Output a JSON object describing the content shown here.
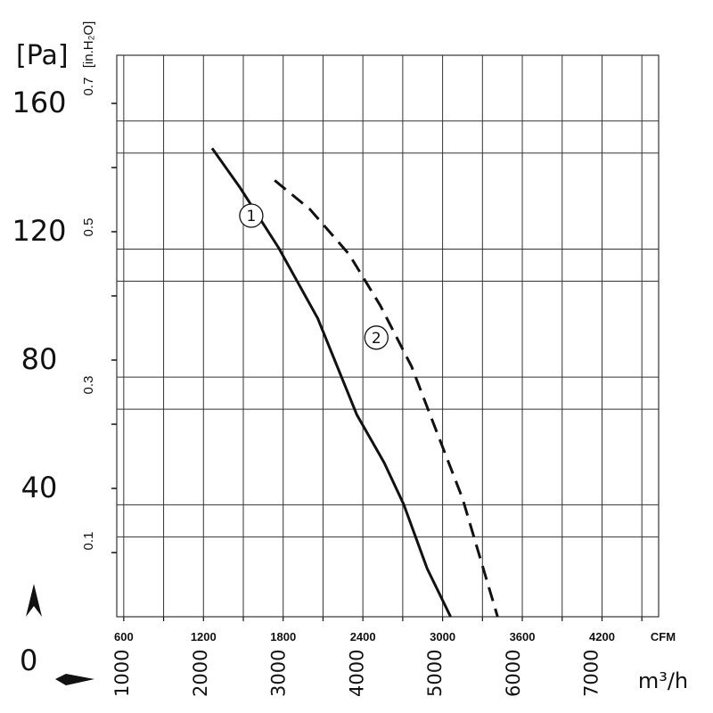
{
  "chart_data": {
    "type": "line",
    "title": "",
    "x_axis_primary": {
      "unit": "CFM",
      "ticks": [
        600,
        1200,
        1800,
        2400,
        3000,
        3600,
        4200
      ]
    },
    "x_axis_secondary": {
      "unit": "m³/h",
      "ticks": [
        1000,
        2000,
        3000,
        4000,
        5000,
        6000,
        7000
      ]
    },
    "y_axis_primary": {
      "unit": "[Pa]",
      "ticks": [
        0,
        40,
        80,
        120,
        160
      ],
      "ylim": [
        0,
        175
      ]
    },
    "y_axis_secondary": {
      "unit": "[in.H₂O]",
      "ticks": [
        "0.1",
        "0.3",
        "0.5",
        "0.7"
      ]
    },
    "xlim_m3h": [
      930,
      7860
    ],
    "grid": true,
    "series": [
      {
        "name": "①",
        "style": "solid",
        "x_m3h": [
          2150,
          2500,
          3000,
          3500,
          4000,
          4350,
          4600,
          4900,
          5200
        ],
        "y_pa": [
          146,
          134,
          115,
          93,
          63,
          48,
          35,
          15,
          0
        ]
      },
      {
        "name": "②",
        "style": "dashed",
        "x_m3h": [
          2950,
          3400,
          3900,
          4300,
          4700,
          5000,
          5350,
          5800
        ],
        "y_pa": [
          136,
          127,
          113,
          97,
          78,
          59,
          37,
          0
        ]
      }
    ],
    "colors": {
      "line": "#111111",
      "grid": "#333333",
      "background": "#ffffff"
    }
  }
}
